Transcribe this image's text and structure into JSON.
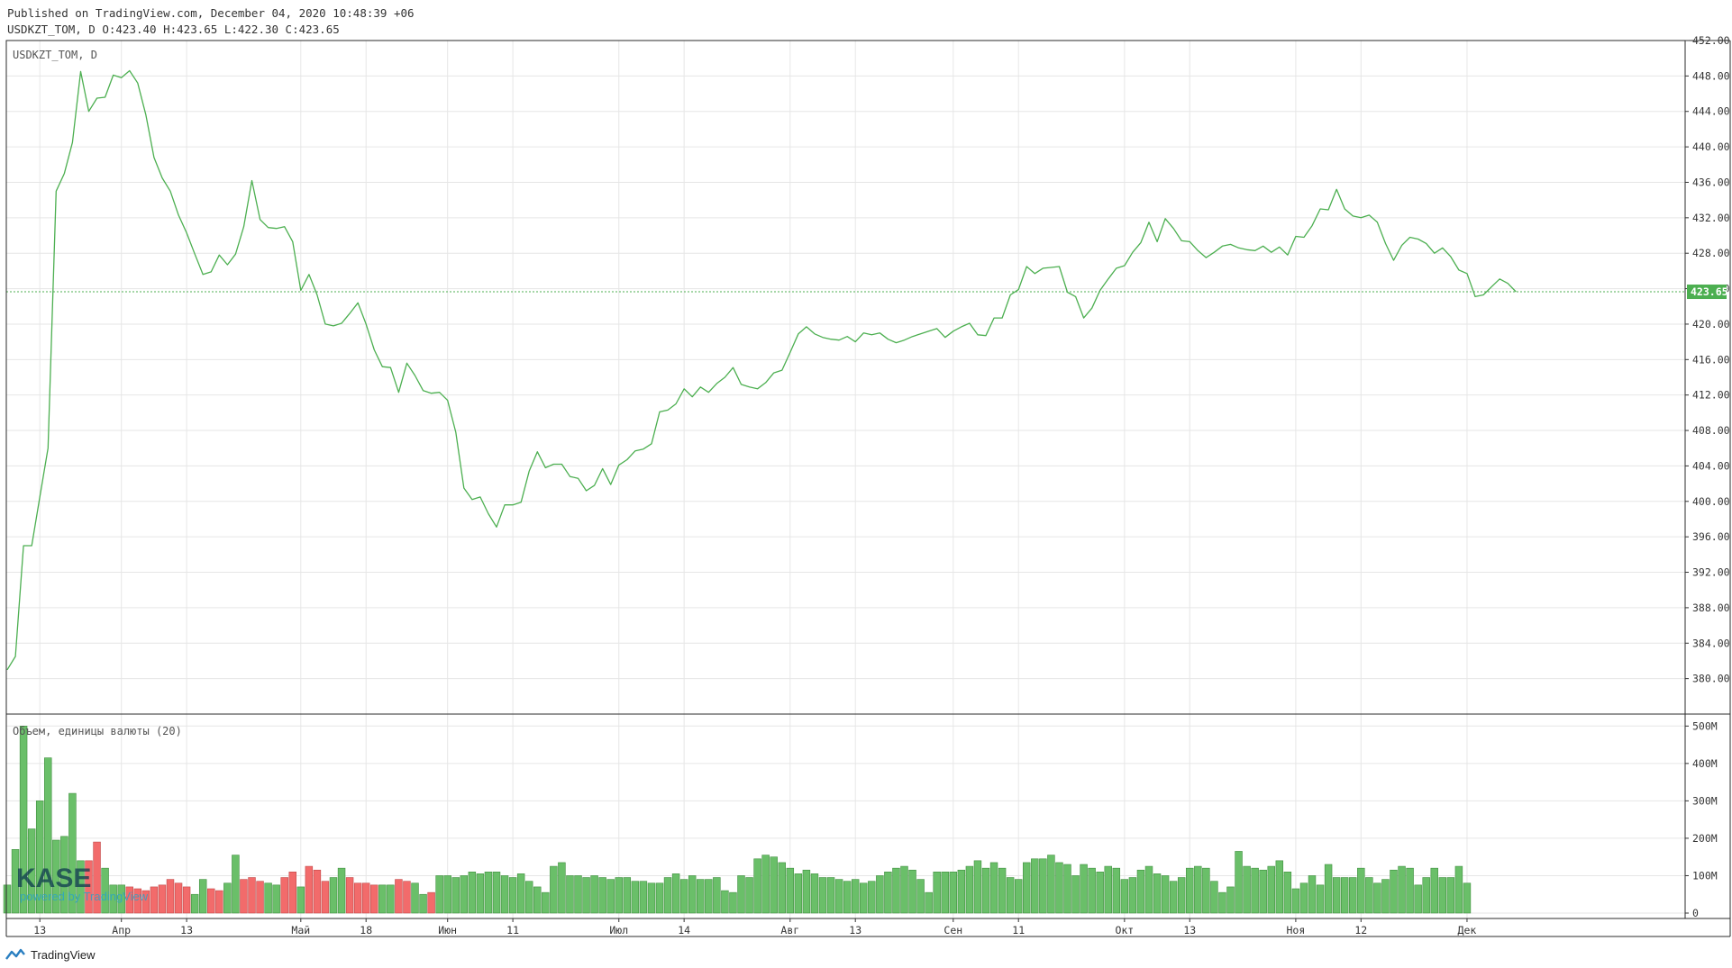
{
  "header": {
    "published": "Published on TradingView.com, December 04, 2020 10:48:39 +06",
    "ohlc": "USDKZT_TOM, D O:423.40 H:423.65 L:422.30 C:423.65"
  },
  "footer": {
    "brand": "TradingView"
  },
  "watermark": {
    "logo_text": "KASE",
    "powered": "powered by TradingView"
  },
  "colors": {
    "line": "#4CAF50",
    "price_label_bg": "#4CAF50",
    "volume_up": "#6ABF69",
    "volume_down": "#F26B6B",
    "grid": "#E6E6E6",
    "axis": "#333333"
  },
  "chart_data": [
    {
      "type": "line",
      "title": "USDKZT_TOM, D",
      "last_price_label": "423.65",
      "last_price": 423.65,
      "ylim": [
        376,
        452
      ],
      "y_ticks": [
        "452.00",
        "448.00",
        "444.00",
        "440.00",
        "436.00",
        "432.00",
        "428.00",
        "424.00",
        "420.00",
        "416.00",
        "412.00",
        "408.00",
        "404.00",
        "400.00",
        "396.00",
        "392.00",
        "388.00",
        "384.00",
        "380.00"
      ],
      "y_tick_values": [
        452,
        448,
        444,
        440,
        436,
        432,
        428,
        424,
        420,
        416,
        412,
        408,
        404,
        400,
        396,
        392,
        388,
        384,
        380
      ],
      "x_ticks": [
        "13",
        "Апр",
        "13",
        "Май",
        "18",
        "Июн",
        "11",
        "Июл",
        "14",
        "Авг",
        "13",
        "Сен",
        "11",
        "Окт",
        "13",
        "Ноя",
        "12",
        "Дек"
      ],
      "x_tick_index": [
        4,
        14,
        22,
        36,
        44,
        54,
        62,
        75,
        83,
        96,
        104,
        116,
        124,
        137,
        145,
        158,
        166,
        179
      ],
      "grid": true,
      "series": [
        {
          "values": [
            381.0,
            382.5,
            395.0,
            395.0,
            400.5,
            406.0,
            435.0,
            437.0,
            440.5,
            448.5,
            444.0,
            445.5,
            445.6,
            448.1,
            447.8,
            448.6,
            447.2,
            443.6,
            438.8,
            436.5,
            435.0,
            432.3,
            430.3,
            427.9,
            425.6,
            425.9,
            427.8,
            426.7,
            427.9,
            431.0,
            436.2,
            431.8,
            430.9,
            430.8,
            431.0,
            429.3,
            423.8,
            425.6,
            423.3,
            420.0,
            419.8,
            420.1,
            421.2,
            422.4,
            420.0,
            417.1,
            415.2,
            415.1,
            412.3,
            415.6,
            414.2,
            412.5,
            412.2,
            412.3,
            411.4,
            407.8,
            401.5,
            400.2,
            400.5,
            398.6,
            397.1,
            399.6,
            399.6,
            399.9,
            403.4,
            405.6,
            403.8,
            404.2,
            404.2,
            402.8,
            402.6,
            401.2,
            401.8,
            403.7,
            401.9,
            404.1,
            404.7,
            405.7,
            405.9,
            406.5,
            410.1,
            410.3,
            411.0,
            412.7,
            411.8,
            412.9,
            412.3,
            413.3,
            414.0,
            415.1,
            413.2,
            412.9,
            412.7,
            413.4,
            414.5,
            414.8,
            416.8,
            418.9,
            419.7,
            418.9,
            418.5,
            418.3,
            418.2,
            418.6,
            418.0,
            419.0,
            418.8,
            419.0,
            418.3,
            417.9,
            418.2,
            418.6,
            418.9,
            419.2,
            419.5,
            418.5,
            419.2,
            419.7,
            420.1,
            418.8,
            418.7,
            420.7,
            420.7,
            423.3,
            423.9,
            426.5,
            425.7,
            426.3,
            426.4,
            426.5,
            423.6,
            423.1,
            420.7,
            421.8,
            423.8,
            425.1,
            426.3,
            426.6,
            428.1,
            429.2,
            431.5,
            429.3,
            431.9,
            430.8,
            429.4,
            429.3,
            428.3,
            427.5,
            428.1,
            428.8,
            429.0,
            428.6,
            428.4,
            428.3,
            428.8,
            428.1,
            428.7,
            427.8,
            429.9,
            429.8,
            431.1,
            433.0,
            432.9,
            435.2,
            433.0,
            432.2,
            432.0,
            432.3,
            431.5,
            429.1,
            427.2,
            428.9,
            429.8,
            429.6,
            429.1,
            428.0,
            428.6,
            427.6,
            426.1,
            425.7,
            423.1,
            423.3,
            424.2,
            425.1,
            424.6,
            423.65
          ]
        }
      ]
    },
    {
      "type": "bar",
      "title": "Объем, единицы валюты (20)",
      "ylim": [
        0,
        520
      ],
      "y_ticks": [
        "500M",
        "400M",
        "300M",
        "200M",
        "100M",
        "0"
      ],
      "y_tick_values": [
        500,
        400,
        300,
        200,
        100,
        0
      ],
      "unit": "M",
      "series": [
        {
          "values": [
            75,
            170,
            500,
            225,
            300,
            415,
            195,
            205,
            320,
            140,
            140,
            190,
            120,
            75,
            75,
            70,
            65,
            60,
            70,
            75,
            90,
            80,
            70,
            50,
            90,
            65,
            60,
            80,
            155,
            90,
            95,
            85,
            80,
            75,
            95,
            110,
            70,
            125,
            115,
            85,
            95,
            120,
            95,
            80,
            80,
            75,
            75,
            75,
            90,
            85,
            80,
            50,
            55,
            100,
            100,
            95,
            100,
            110,
            105,
            110,
            110,
            100,
            95,
            105,
            85,
            70,
            55,
            125,
            135,
            100,
            100,
            95,
            100,
            95,
            90,
            95,
            95,
            85,
            85,
            80,
            80,
            95,
            105,
            90,
            100,
            90,
            90,
            95,
            60,
            55,
            100,
            95,
            145,
            155,
            150,
            135,
            120,
            105,
            115,
            105,
            95,
            95,
            90,
            85,
            90,
            80,
            85,
            100,
            110,
            120,
            125,
            115,
            90,
            55,
            110,
            110,
            110,
            115,
            125,
            140,
            120,
            135,
            120,
            95,
            90,
            135,
            145,
            145,
            155,
            135,
            130,
            100,
            130,
            120,
            110,
            125,
            120,
            90,
            95,
            115,
            125,
            105,
            100,
            85,
            95,
            120,
            125,
            120,
            85,
            55,
            70,
            165,
            125,
            120,
            115,
            125,
            140,
            110,
            65,
            80,
            100,
            75,
            130,
            95,
            95,
            95,
            120,
            95,
            80,
            90,
            115,
            125,
            120,
            75,
            95,
            120,
            95,
            95,
            125,
            80
          ],
          "up": [
            1,
            1,
            1,
            1,
            1,
            1,
            1,
            1,
            1,
            1,
            0,
            0,
            1,
            1,
            1,
            0,
            0,
            0,
            0,
            0,
            0,
            0,
            0,
            1,
            1,
            0,
            0,
            1,
            1,
            0,
            0,
            0,
            1,
            1,
            0,
            0,
            1,
            0,
            0,
            0,
            1,
            1,
            0,
            0,
            0,
            0,
            1,
            1,
            0,
            0,
            1,
            1,
            0,
            1,
            1,
            1,
            1,
            1,
            1,
            1,
            1,
            1,
            1,
            1,
            1,
            1,
            1,
            1,
            1,
            1,
            1,
            1,
            1,
            1,
            1,
            1,
            1,
            1,
            1,
            1,
            1,
            1,
            1,
            1,
            1,
            1,
            1,
            1,
            1,
            1,
            1,
            1,
            1,
            1,
            1,
            1,
            1,
            1,
            1,
            1,
            1,
            1,
            1,
            1,
            1,
            1,
            1,
            1,
            1,
            1,
            1,
            1,
            1,
            1,
            1,
            1,
            1,
            1,
            1,
            1,
            1,
            1,
            1,
            1,
            1,
            1,
            1,
            1,
            1,
            1,
            1,
            1,
            1,
            1,
            1,
            1,
            1,
            1,
            1,
            1,
            1,
            1,
            1,
            1,
            1,
            1,
            1,
            1,
            1,
            1,
            1,
            1,
            1,
            1,
            1,
            1,
            1,
            1,
            1,
            1,
            1,
            1,
            1,
            1,
            1,
            1,
            1,
            1,
            1,
            1,
            1,
            1,
            1,
            1,
            1,
            1,
            1,
            1,
            1,
            1
          ]
        }
      ]
    }
  ]
}
